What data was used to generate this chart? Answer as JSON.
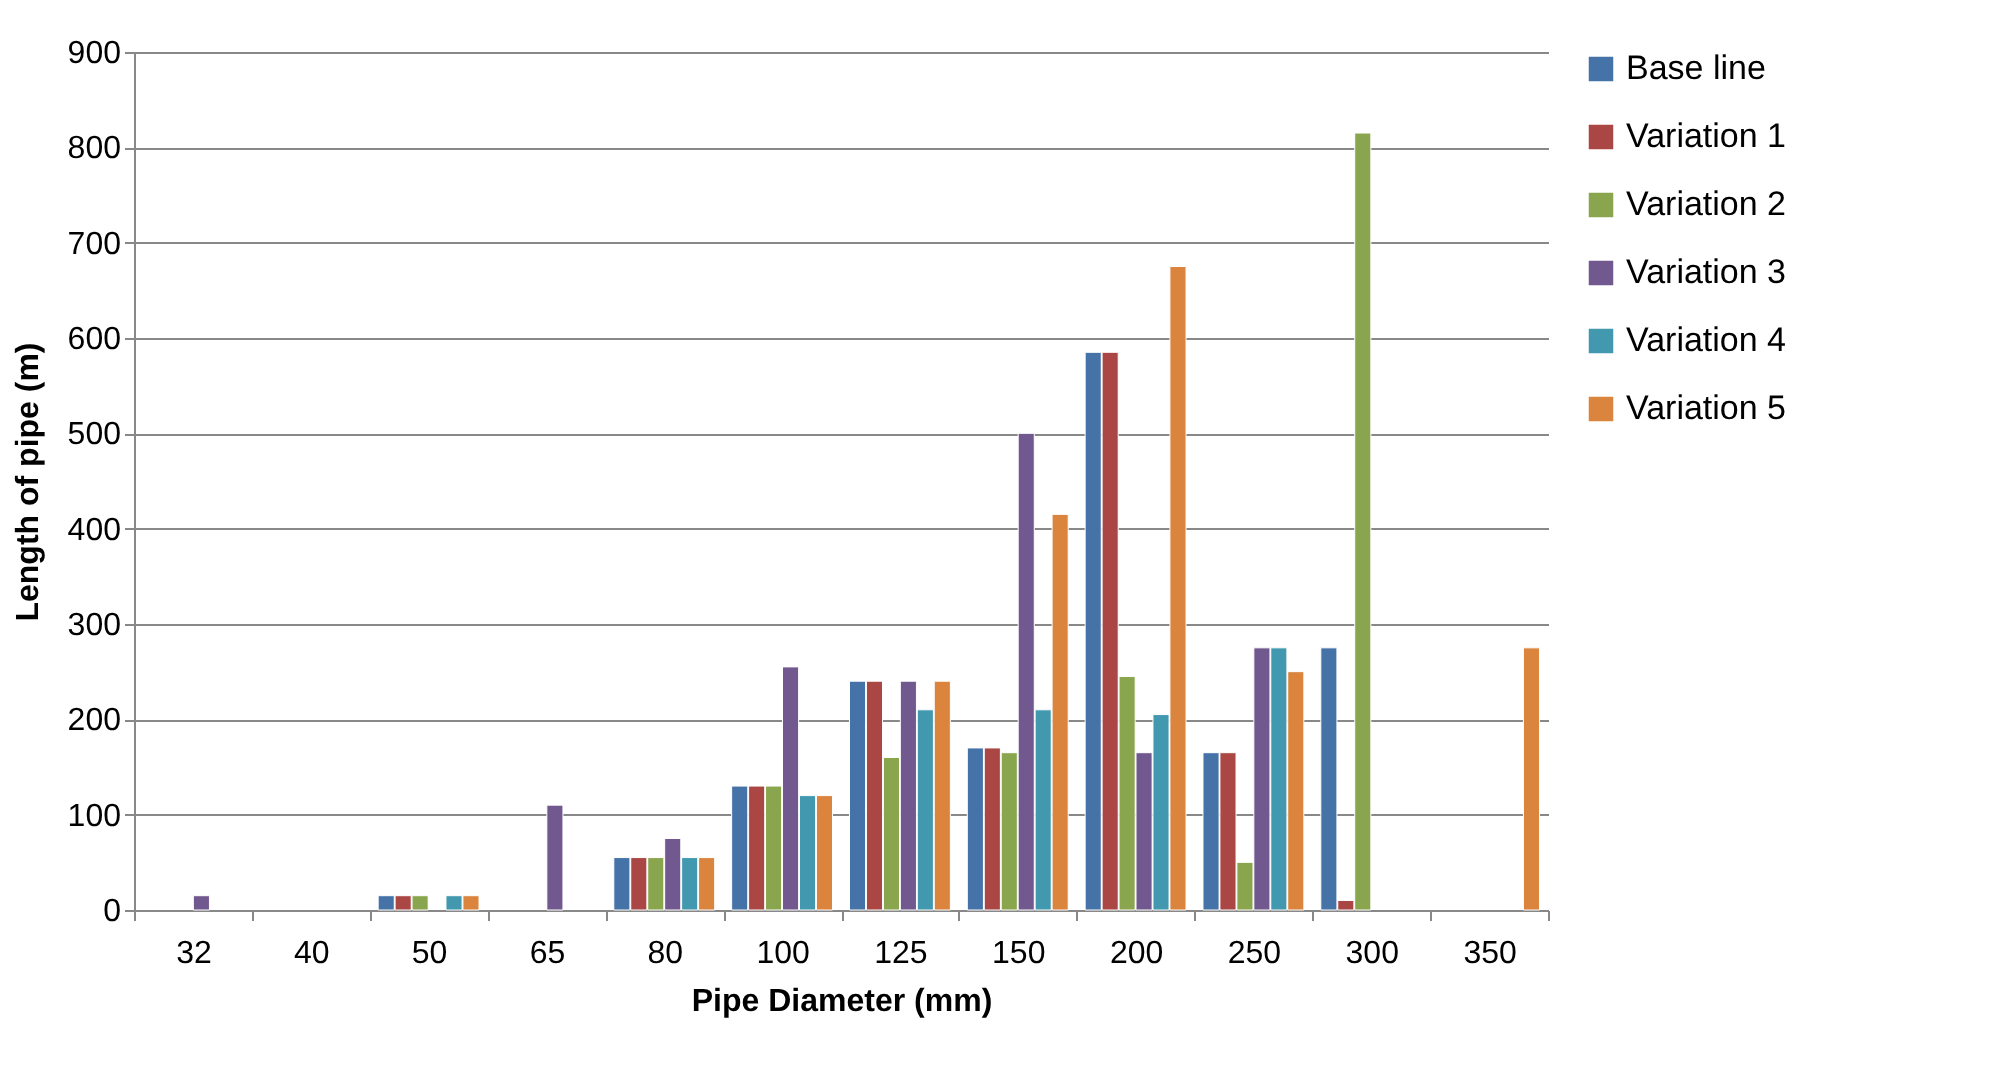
{
  "chart_data": {
    "type": "bar",
    "xlabel": "Pipe Diameter (mm)",
    "ylabel": "Length of pipe (m)",
    "categories": [
      "32",
      "40",
      "50",
      "65",
      "80",
      "100",
      "125",
      "150",
      "200",
      "250",
      "300",
      "350"
    ],
    "series": [
      {
        "name": "Base line",
        "color": "#4572a7",
        "values": [
          null,
          null,
          15,
          null,
          55,
          130,
          240,
          170,
          585,
          165,
          275,
          null
        ]
      },
      {
        "name": "Variation 1",
        "color": "#aa4643",
        "values": [
          null,
          null,
          15,
          null,
          55,
          130,
          240,
          170,
          585,
          165,
          10,
          null
        ]
      },
      {
        "name": "Variation 2",
        "color": "#89a54e",
        "values": [
          null,
          null,
          15,
          null,
          55,
          130,
          160,
          165,
          245,
          50,
          815,
          null
        ]
      },
      {
        "name": "Variation 3",
        "color": "#71588f",
        "values": [
          15,
          null,
          null,
          110,
          75,
          255,
          240,
          500,
          165,
          275,
          null,
          null
        ]
      },
      {
        "name": "Variation 4",
        "color": "#4198af",
        "values": [
          null,
          null,
          15,
          null,
          55,
          120,
          210,
          210,
          205,
          275,
          null,
          null
        ]
      },
      {
        "name": "Variation 5",
        "color": "#db843d",
        "values": [
          null,
          null,
          15,
          null,
          55,
          120,
          240,
          415,
          675,
          250,
          null,
          275
        ]
      }
    ],
    "ylim": [
      0,
      900
    ],
    "yticks": [
      0,
      100,
      200,
      300,
      400,
      500,
      600,
      700,
      800,
      900
    ],
    "grid": "y",
    "legend": "right"
  }
}
